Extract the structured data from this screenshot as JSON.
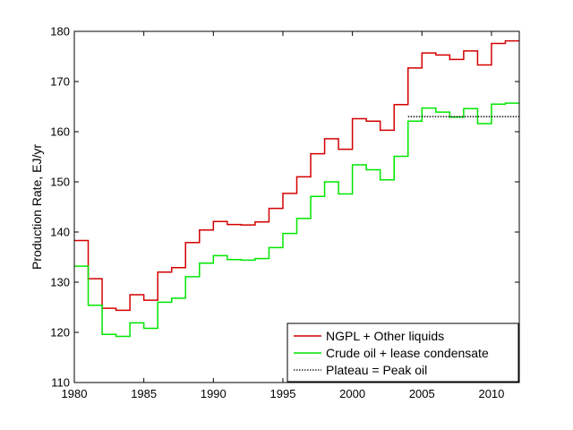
{
  "chart_data": {
    "type": "line",
    "step": true,
    "title": "",
    "xlabel": "",
    "ylabel": "Production Rate, EJ/yr",
    "xlim": [
      1980,
      2012
    ],
    "ylim": [
      110,
      180
    ],
    "xticks": [
      1980,
      1985,
      1990,
      1995,
      2000,
      2005,
      2010
    ],
    "yticks": [
      110,
      120,
      130,
      140,
      150,
      160,
      170,
      180
    ],
    "grid": false,
    "legend_position": "bottom-right",
    "series": [
      {
        "name": "NGPL + Other liquids",
        "color": "#d40000",
        "style": "solid",
        "x": [
          1980,
          1981,
          1982,
          1983,
          1984,
          1985,
          1986,
          1987,
          1988,
          1989,
          1990,
          1991,
          1992,
          1993,
          1994,
          1995,
          1996,
          1997,
          1998,
          1999,
          2000,
          2001,
          2002,
          2003,
          2004,
          2005,
          2006,
          2007,
          2008,
          2009,
          2010,
          2011,
          2012
        ],
        "values": [
          138.3,
          130.7,
          124.8,
          124.4,
          127.5,
          126.4,
          132.0,
          132.9,
          137.9,
          140.4,
          142.1,
          141.5,
          141.4,
          142.0,
          144.7,
          147.7,
          151.0,
          155.6,
          158.6,
          156.5,
          162.6,
          162.1,
          160.3,
          165.4,
          172.7,
          175.7,
          175.3,
          174.4,
          176.1,
          173.3,
          177.6,
          178.1,
          178.1
        ]
      },
      {
        "name": "Crude oil + lease condensate",
        "color": "#00e600",
        "style": "solid",
        "x": [
          1980,
          1981,
          1982,
          1983,
          1984,
          1985,
          1986,
          1987,
          1988,
          1989,
          1990,
          1991,
          1992,
          1993,
          1994,
          1995,
          1996,
          1997,
          1998,
          1999,
          2000,
          2001,
          2002,
          2003,
          2004,
          2005,
          2006,
          2007,
          2008,
          2009,
          2010,
          2011,
          2012
        ],
        "values": [
          133.2,
          125.4,
          119.6,
          119.2,
          121.9,
          120.8,
          126.0,
          126.8,
          131.1,
          133.8,
          135.3,
          134.5,
          134.4,
          134.7,
          136.9,
          139.7,
          142.7,
          147.1,
          150.0,
          147.6,
          153.4,
          152.4,
          150.4,
          155.1,
          162.1,
          164.7,
          163.9,
          162.9,
          164.6,
          161.6,
          165.5,
          165.7,
          165.7
        ]
      },
      {
        "name": "Plateau = Peak oil",
        "color": "#000000",
        "style": "dotted",
        "x": [
          2004,
          2012
        ],
        "values": [
          163.0,
          163.0
        ]
      }
    ]
  }
}
